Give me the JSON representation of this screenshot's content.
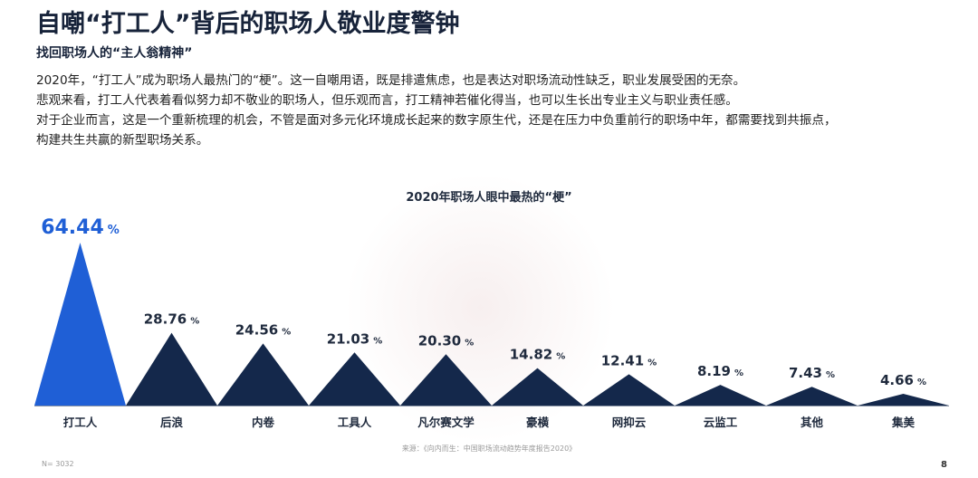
{
  "header": {
    "title": "自嘲“打工人”背后的职场人敬业度警钟",
    "subtitle": "找回职场人的“主人翁精神”"
  },
  "body": {
    "lines": [
      "2020年，“打工人”成为职场人最热门的“梗”。这一自嘲用语，既是排遣焦虑，也是表达对职场流动性缺乏，职业发展受困的无奈。",
      "悲观来看，打工人代表着看似努力却不敬业的职场人，但乐观而言，打工精神若催化得当，也可以生长出专业主义与职业责任感。",
      "对于企业而言，这是一个重新梳理的机会，不管是面对多元化环境成长起来的数字原生代，还是在压力中负重前行的职场中年，都需要找到共振点，",
      "构建共生共赢的新型职场关系。"
    ]
  },
  "chart_data": {
    "type": "bar",
    "title": "2020年职场人眼中最热的“梗”",
    "categories": [
      "打工人",
      "后浪",
      "内卷",
      "工具人",
      "凡尔赛文学",
      "豪横",
      "网抑云",
      "云监工",
      "其他",
      "集美"
    ],
    "values": [
      64.44,
      28.76,
      24.56,
      21.03,
      20.3,
      14.82,
      12.41,
      8.19,
      7.43,
      4.66
    ],
    "value_suffix": "%",
    "highlight_color": "#1f5fd6",
    "bar_color": "#14284b"
  },
  "footer": {
    "source": "来源：《向内而生：中国职场流动趋势年度报告2020》",
    "sample": "N= 3032",
    "page": "8"
  }
}
